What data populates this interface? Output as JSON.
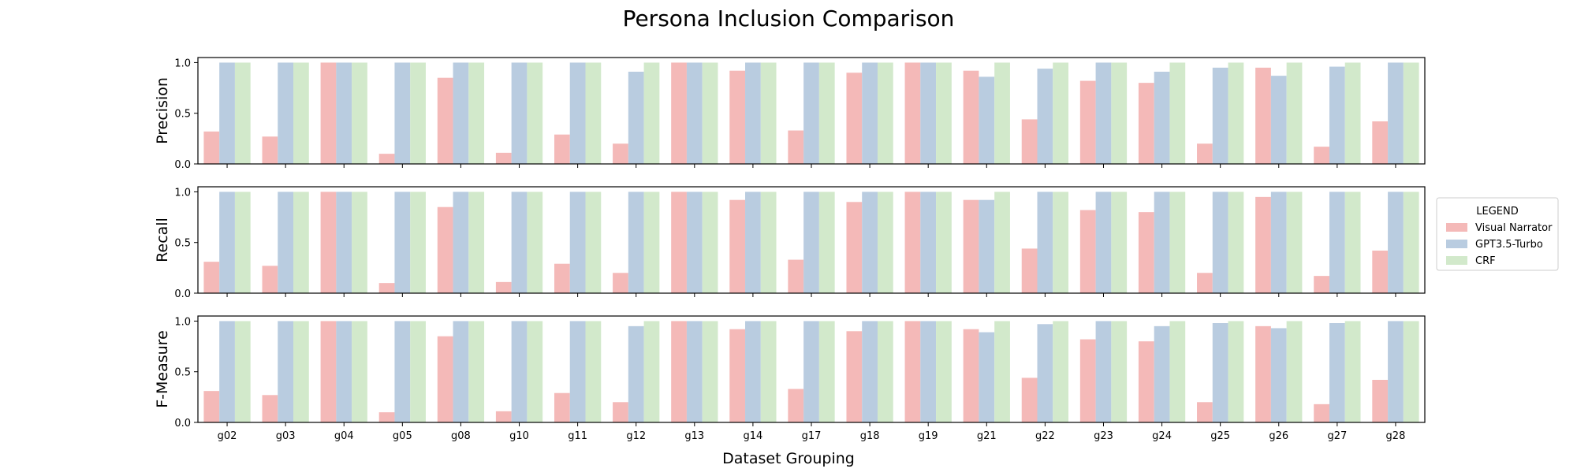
{
  "chart_data": {
    "type": "bar",
    "title": "Persona Inclusion Comparison",
    "xlabel": "Dataset Grouping",
    "categories": [
      "g02",
      "g03",
      "g04",
      "g05",
      "g08",
      "g10",
      "g11",
      "g12",
      "g13",
      "g14",
      "g17",
      "g18",
      "g19",
      "g21",
      "g22",
      "g23",
      "g24",
      "g25",
      "g26",
      "g27",
      "g28"
    ],
    "legend": {
      "title": "LEGEND",
      "position": "right",
      "entries": [
        "Visual Narrator",
        "GPT3.5-Turbo",
        "CRF"
      ]
    },
    "colors": {
      "Visual Narrator": "#f4b9b8",
      "GPT3.5-Turbo": "#b9cce0",
      "CRF": "#d2e9cb"
    },
    "panels": [
      {
        "ylabel": "Precision",
        "ylim": [
          0,
          1.05
        ],
        "yticks": [
          "0.0",
          "0.5",
          "1.0"
        ],
        "series": [
          {
            "name": "Visual Narrator",
            "values": [
              0.32,
              0.27,
              1.0,
              0.1,
              0.85,
              0.11,
              0.29,
              0.2,
              1.0,
              0.92,
              0.33,
              0.9,
              1.0,
              0.92,
              0.44,
              0.82,
              0.8,
              0.2,
              0.95,
              0.17,
              0.42
            ]
          },
          {
            "name": "GPT3.5-Turbo",
            "values": [
              1.0,
              1.0,
              1.0,
              1.0,
              1.0,
              1.0,
              1.0,
              0.91,
              1.0,
              1.0,
              1.0,
              1.0,
              1.0,
              0.86,
              0.94,
              1.0,
              0.91,
              0.95,
              0.87,
              0.96,
              1.0
            ]
          },
          {
            "name": "CRF",
            "values": [
              1.0,
              1.0,
              1.0,
              1.0,
              1.0,
              1.0,
              1.0,
              1.0,
              1.0,
              1.0,
              1.0,
              1.0,
              1.0,
              1.0,
              1.0,
              1.0,
              1.0,
              1.0,
              1.0,
              1.0,
              1.0
            ]
          }
        ]
      },
      {
        "ylabel": "Recall",
        "ylim": [
          0,
          1.05
        ],
        "yticks": [
          "0.0",
          "0.5",
          "1.0"
        ],
        "series": [
          {
            "name": "Visual Narrator",
            "values": [
              0.31,
              0.27,
              1.0,
              0.1,
              0.85,
              0.11,
              0.29,
              0.2,
              1.0,
              0.92,
              0.33,
              0.9,
              1.0,
              0.92,
              0.44,
              0.82,
              0.8,
              0.2,
              0.95,
              0.17,
              0.42
            ]
          },
          {
            "name": "GPT3.5-Turbo",
            "values": [
              1.0,
              1.0,
              1.0,
              1.0,
              1.0,
              1.0,
              1.0,
              1.0,
              1.0,
              1.0,
              1.0,
              1.0,
              1.0,
              0.92,
              1.0,
              1.0,
              1.0,
              1.0,
              1.0,
              1.0,
              1.0
            ]
          },
          {
            "name": "CRF",
            "values": [
              1.0,
              1.0,
              1.0,
              1.0,
              1.0,
              1.0,
              1.0,
              1.0,
              1.0,
              1.0,
              1.0,
              1.0,
              1.0,
              1.0,
              1.0,
              1.0,
              1.0,
              1.0,
              1.0,
              1.0,
              1.0
            ]
          }
        ]
      },
      {
        "ylabel": "F-Measure",
        "ylim": [
          0,
          1.05
        ],
        "yticks": [
          "0.0",
          "0.5",
          "1.0"
        ],
        "series": [
          {
            "name": "Visual Narrator",
            "values": [
              0.31,
              0.27,
              1.0,
              0.1,
              0.85,
              0.11,
              0.29,
              0.2,
              1.0,
              0.92,
              0.33,
              0.9,
              1.0,
              0.92,
              0.44,
              0.82,
              0.8,
              0.2,
              0.95,
              0.18,
              0.42
            ]
          },
          {
            "name": "GPT3.5-Turbo",
            "values": [
              1.0,
              1.0,
              1.0,
              1.0,
              1.0,
              1.0,
              1.0,
              0.95,
              1.0,
              1.0,
              1.0,
              1.0,
              1.0,
              0.89,
              0.97,
              1.0,
              0.95,
              0.98,
              0.93,
              0.98,
              1.0
            ]
          },
          {
            "name": "CRF",
            "values": [
              1.0,
              1.0,
              1.0,
              1.0,
              1.0,
              1.0,
              1.0,
              1.0,
              1.0,
              1.0,
              1.0,
              1.0,
              1.0,
              1.0,
              1.0,
              1.0,
              1.0,
              1.0,
              1.0,
              1.0,
              1.0
            ]
          }
        ]
      }
    ]
  }
}
